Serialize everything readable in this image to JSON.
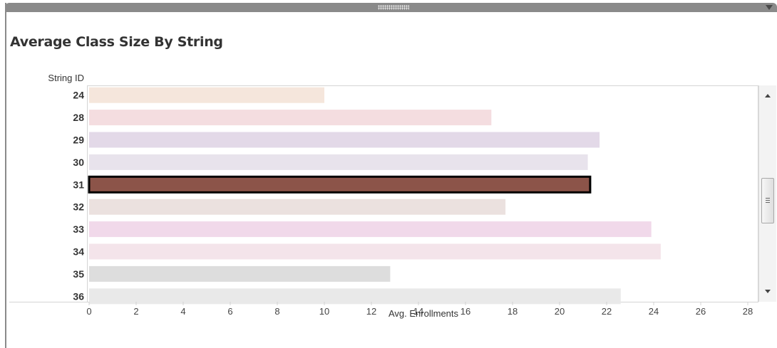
{
  "title": "Average Class Size By String",
  "chart_data": {
    "type": "bar",
    "orientation": "horizontal",
    "title": "Average Class Size By String",
    "y_axis_title": "String ID",
    "xlabel": "Avg. Enrollments",
    "xlim": [
      0,
      28
    ],
    "x_ticks": [
      0,
      2,
      4,
      6,
      8,
      10,
      12,
      14,
      16,
      18,
      20,
      22,
      24,
      26,
      28
    ],
    "categories": [
      "24",
      "28",
      "29",
      "30",
      "31",
      "32",
      "33",
      "34",
      "35",
      "36"
    ],
    "values": [
      10.0,
      17.1,
      21.7,
      21.2,
      21.3,
      17.7,
      23.9,
      24.3,
      12.8,
      22.6
    ],
    "colors": [
      "#f5e6dc",
      "#f4dde0",
      "#e3d9e8",
      "#e8e3ec",
      "#8c5449",
      "#ebe1df",
      "#f1d9ea",
      "#f4e4ea",
      "#dddddd",
      "#e9e9e9"
    ],
    "highlighted": "31",
    "highlight_border": "#000000",
    "grid": false,
    "scrollable": true
  }
}
